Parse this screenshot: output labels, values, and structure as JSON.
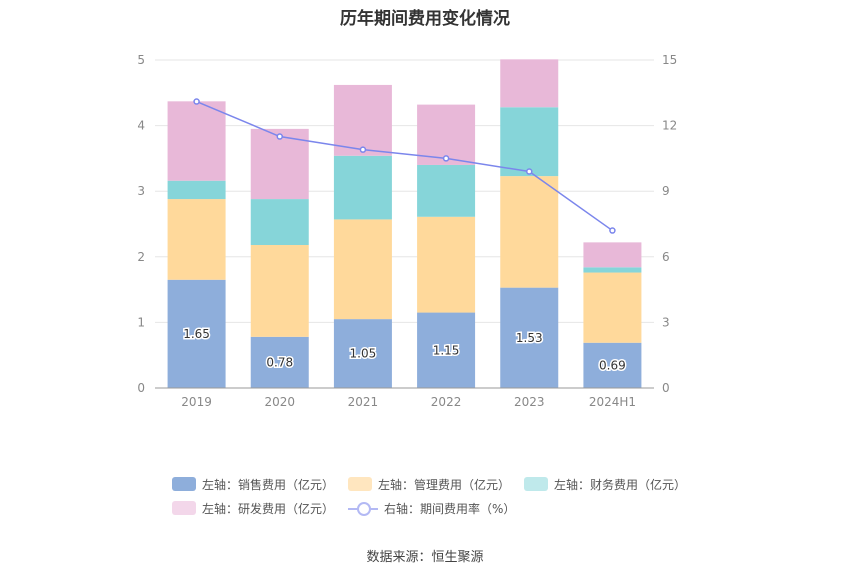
{
  "chart_data": {
    "type": "bar",
    "title": "历年期间费用变化情况",
    "categories": [
      "2019",
      "2020",
      "2021",
      "2022",
      "2023",
      "2024H1"
    ],
    "stacked": true,
    "left_axis": {
      "min": 0,
      "max": 5,
      "ticks": [
        "0",
        "1",
        "2",
        "3",
        "4",
        "5"
      ]
    },
    "right_axis": {
      "min": 0,
      "max": 15,
      "ticks": [
        "0",
        "3",
        "6",
        "9",
        "12",
        "15"
      ]
    },
    "series": [
      {
        "name": "左轴：销售费用（亿元）",
        "axis": "left",
        "color": "#8eaedb",
        "values": [
          1.65,
          0.78,
          1.05,
          1.15,
          1.53,
          0.69
        ],
        "labels": [
          "1.65",
          "0.78",
          "1.05",
          "1.15",
          "1.53",
          "0.69"
        ]
      },
      {
        "name": "左轴：管理费用（亿元）",
        "axis": "left",
        "color": "#ffd99b",
        "values": [
          1.23,
          1.4,
          1.52,
          1.46,
          1.7,
          1.07
        ]
      },
      {
        "name": "左轴：财务费用（亿元）",
        "axis": "left",
        "color": "#86d5d9",
        "values": [
          0.28,
          0.7,
          0.97,
          0.79,
          1.05,
          0.08
        ]
      },
      {
        "name": "左轴：研发费用（亿元）",
        "axis": "left",
        "color": "#e8b8d8",
        "values": [
          1.21,
          1.07,
          1.08,
          0.92,
          0.73,
          0.38
        ]
      },
      {
        "name": "右轴：期间费用率（%）",
        "axis": "right",
        "type": "line",
        "color": "#7b86ec",
        "values": [
          13.1,
          11.5,
          10.9,
          10.5,
          9.9,
          7.2
        ]
      }
    ],
    "legend_position": "bottom",
    "grid": true
  },
  "source": "数据来源：恒生聚源"
}
